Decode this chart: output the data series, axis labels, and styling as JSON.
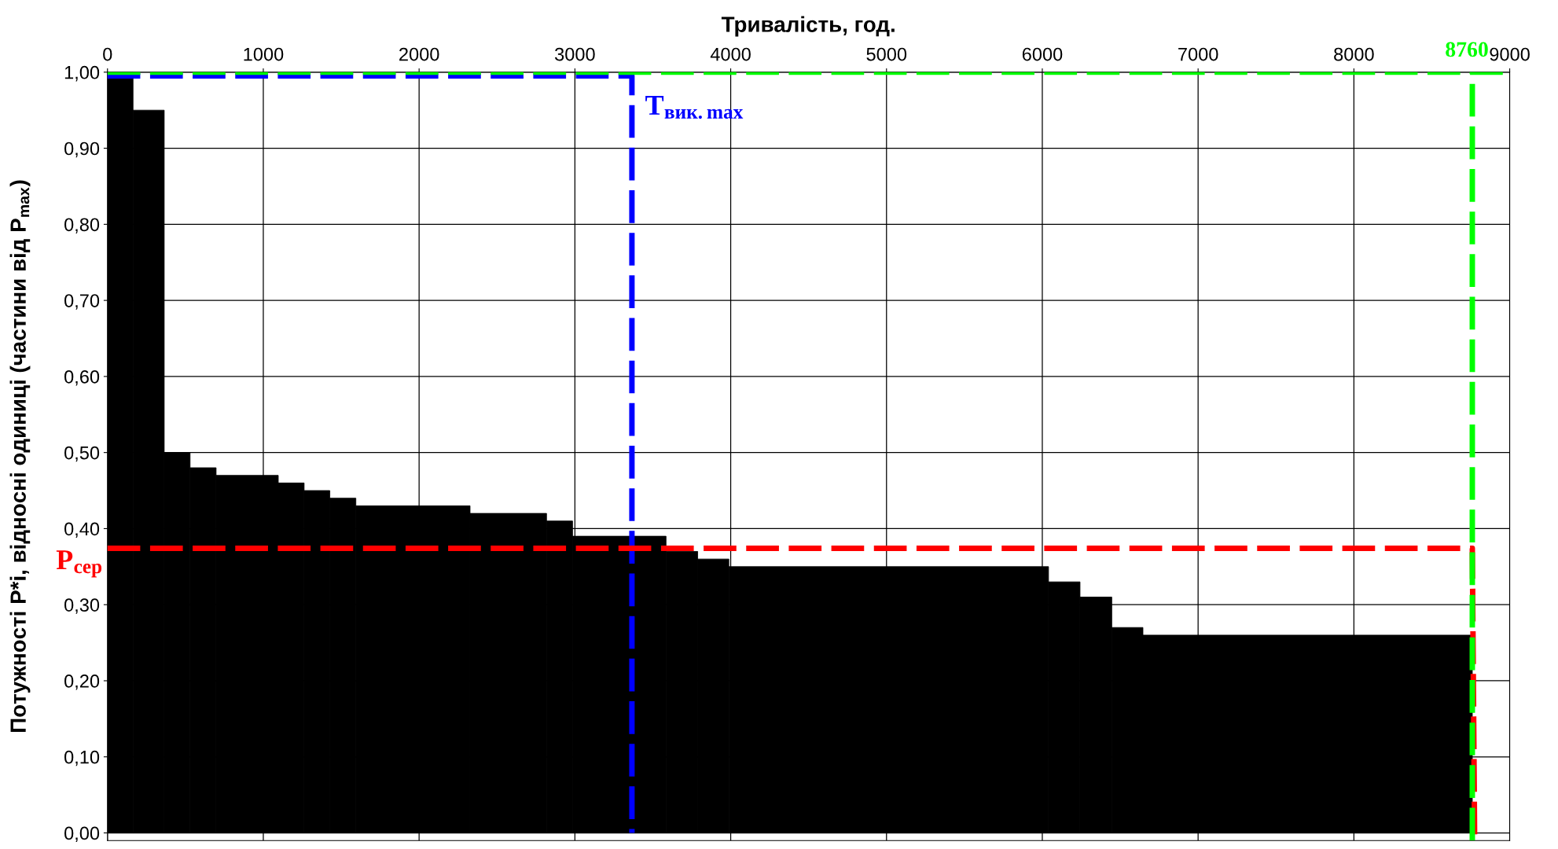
{
  "chart_data": {
    "type": "histogram",
    "xlabel": "Тривалість, год.",
    "ylabel": "Потужності P*i, відносні одиниці (частини від P$_{max}$)",
    "bins": [
      0,
      164,
      364,
      530,
      697,
      1096,
      1262,
      1427,
      1594,
      2327,
      2818,
      2985,
      3585,
      3788,
      3988,
      6040,
      6242,
      6446,
      6646,
      8760
    ],
    "values": [
      1.0,
      0.95,
      0.5,
      0.48,
      0.47,
      0.46,
      0.45,
      0.44,
      0.43,
      0.42,
      0.41,
      0.39,
      0.37,
      0.36,
      0.35,
      0.33,
      0.31,
      0.27,
      0.26
    ],
    "color": "#000000",
    "series": [
      {
        "type": "line",
        "color": "#0000ff",
        "line_style": "dashed",
        "x": [
          0,
          3366,
          3366
        ],
        "values": [
          0.995,
          0.995,
          0.0
        ]
      },
      {
        "type": "line",
        "color": "#ff0000",
        "line_style": "dashed",
        "x": [
          0,
          8760,
          8775
        ],
        "values": [
          0.374,
          0.374,
          -0.01
        ]
      }
    ],
    "ref_lines": [
      {
        "axis": "y",
        "value": 1.0,
        "color": "#00ff00",
        "line_style": "dashed"
      },
      {
        "axis": "x",
        "value": 8760,
        "label": "8760",
        "color": "#00ff00",
        "line_style": "dashed"
      }
    ],
    "annotations": [
      {
        "text": "T$_{вик.max}$",
        "x": 3366,
        "y": 0.97
      },
      {
        "text": "P$_{сер}$",
        "x": 0,
        "y": 0.374
      }
    ],
    "xlim": [
      0,
      9000
    ],
    "xticks": [
      0,
      1000,
      2000,
      3000,
      4000,
      5000,
      6000,
      7000,
      8000,
      9000
    ],
    "ylim": [
      -0.01,
      1.0
    ],
    "yticks": [
      {
        "value": 0,
        "label": "0,00"
      },
      {
        "value": 0.1,
        "label": "0,10"
      },
      {
        "value": 0.2,
        "label": "0,20"
      },
      {
        "value": 0.3,
        "label": "0,30"
      },
      {
        "value": 0.4,
        "label": "0,40"
      },
      {
        "value": 0.5,
        "label": "0,50"
      },
      {
        "value": 0.6,
        "label": "0,60"
      },
      {
        "value": 0.7,
        "label": "0,70"
      },
      {
        "value": 0.8,
        "label": "0,80"
      },
      {
        "value": 0.9,
        "label": "0,90"
      },
      {
        "value": 1.0,
        "label": "1,00"
      }
    ],
    "grid": true
  }
}
